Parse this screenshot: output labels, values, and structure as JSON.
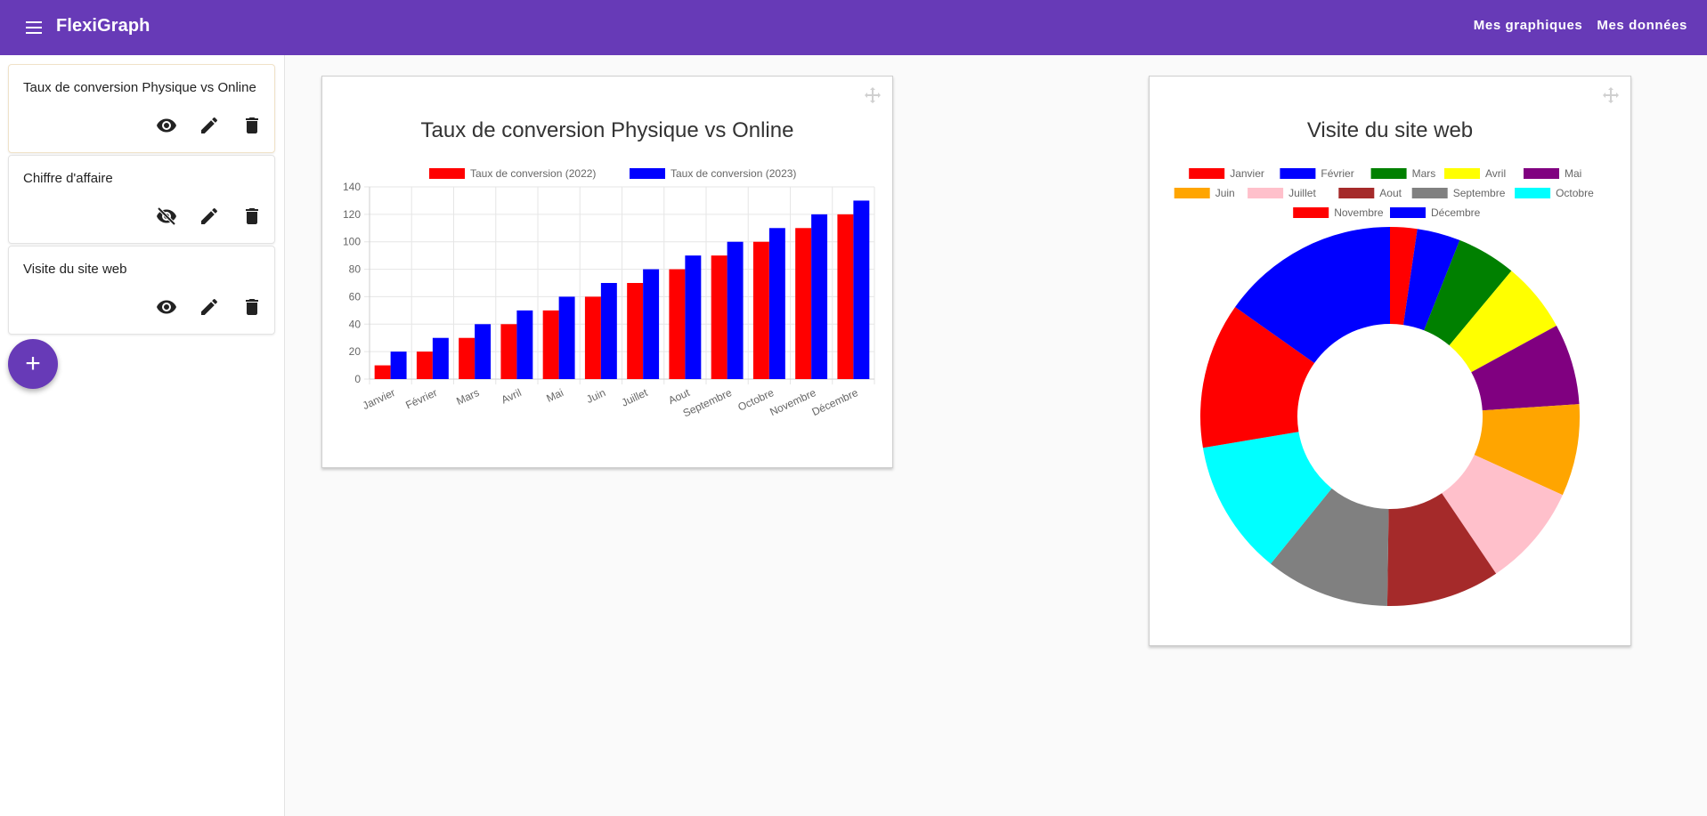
{
  "app": {
    "title": "FlexiGraph"
  },
  "nav": {
    "links": [
      "Mes graphiques",
      "Mes données"
    ]
  },
  "sidebar": {
    "items": [
      {
        "label": "Taux de conversion Physique vs Online",
        "visible": true
      },
      {
        "label": "Chiffre d'affaire",
        "visible": false
      },
      {
        "label": "Visite du site web",
        "visible": true
      }
    ],
    "add_label": "+"
  },
  "colors": {
    "primary": "#673ab7"
  },
  "chart_data": [
    {
      "type": "bar",
      "title": "Taux de conversion Physique vs Online",
      "categories": [
        "Janvier",
        "Février",
        "Mars",
        "Avril",
        "Mai",
        "Juin",
        "Juillet",
        "Aout",
        "Septembre",
        "Octobre",
        "Novembre",
        "Décembre"
      ],
      "series": [
        {
          "name": "Taux de conversion (2022)",
          "color": "#ff0000",
          "values": [
            10,
            20,
            30,
            40,
            50,
            60,
            70,
            80,
            90,
            100,
            110,
            120
          ]
        },
        {
          "name": "Taux de conversion (2023)",
          "color": "#0000ff",
          "values": [
            20,
            30,
            40,
            50,
            60,
            70,
            80,
            90,
            100,
            110,
            120,
            130
          ]
        }
      ],
      "yticks": [
        0,
        20,
        40,
        60,
        80,
        100,
        120,
        140
      ],
      "ylim": [
        0,
        140
      ],
      "legend": "top",
      "grid": true
    },
    {
      "type": "pie",
      "subtype": "doughnut",
      "title": "Visite du site web",
      "categories": [
        "Janvier",
        "Février",
        "Mars",
        "Avril",
        "Mai",
        "Juin",
        "Juillet",
        "Aout",
        "Septembre",
        "Octobre",
        "Novembre",
        "Décembre"
      ],
      "values": [
        5,
        8,
        11,
        13,
        15,
        17,
        19,
        21,
        23,
        25,
        27,
        33
      ],
      "colors": [
        "#ff0000",
        "#0000ff",
        "#008000",
        "#ffff00",
        "#800080",
        "#ffa500",
        "#ffc0cb",
        "#a52a2a",
        "#808080",
        "#00ffff",
        "#ff0000",
        "#0000ff"
      ],
      "legend": "top"
    }
  ]
}
